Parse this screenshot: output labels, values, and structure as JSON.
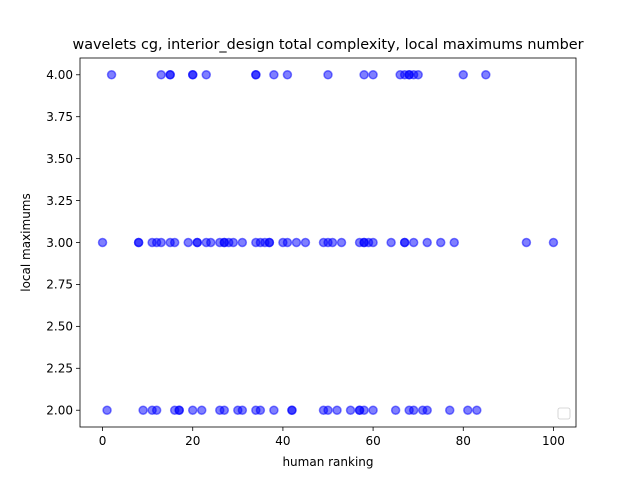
{
  "chart_data": {
    "type": "scatter",
    "title": "wavelets cg, interior_design total complexity, local maximums number",
    "xlabel": "human ranking",
    "ylabel": "local maximums",
    "xlim": [
      -5,
      105
    ],
    "ylim": [
      1.9,
      4.1
    ],
    "x_ticks": [
      0,
      20,
      40,
      60,
      80,
      100
    ],
    "x_tick_labels": [
      "0",
      "20",
      "40",
      "60",
      "80",
      "100"
    ],
    "y_ticks": [
      2.0,
      2.25,
      2.5,
      2.75,
      3.0,
      3.25,
      3.5,
      3.75,
      4.0
    ],
    "y_tick_labels": [
      "2.00",
      "2.25",
      "2.50",
      "2.75",
      "3.00",
      "3.25",
      "3.50",
      "3.75",
      "4.00"
    ],
    "grid": false,
    "legend_position": "lower right",
    "marker_color": "#0000ff",
    "series": [
      {
        "points": [
          [
            2,
            4
          ],
          [
            13,
            4
          ],
          [
            15,
            4
          ],
          [
            15,
            4
          ],
          [
            20,
            4
          ],
          [
            20,
            4
          ],
          [
            23,
            4
          ],
          [
            34,
            4
          ],
          [
            34,
            4
          ],
          [
            38,
            4
          ],
          [
            41,
            4
          ],
          [
            50,
            4
          ],
          [
            58,
            4
          ],
          [
            60,
            4
          ],
          [
            66,
            4
          ],
          [
            67,
            4
          ],
          [
            68,
            4
          ],
          [
            68,
            4
          ],
          [
            69,
            4
          ],
          [
            70,
            4
          ],
          [
            80,
            4
          ],
          [
            85,
            4
          ],
          [
            0,
            3
          ],
          [
            8,
            3
          ],
          [
            8,
            3
          ],
          [
            11,
            3
          ],
          [
            12,
            3
          ],
          [
            13,
            3
          ],
          [
            15,
            3
          ],
          [
            16,
            3
          ],
          [
            19,
            3
          ],
          [
            21,
            3
          ],
          [
            21,
            3
          ],
          [
            23,
            3
          ],
          [
            24,
            3
          ],
          [
            26,
            3
          ],
          [
            27,
            3
          ],
          [
            27,
            3
          ],
          [
            28,
            3
          ],
          [
            29,
            3
          ],
          [
            31,
            3
          ],
          [
            34,
            3
          ],
          [
            35,
            3
          ],
          [
            36,
            3
          ],
          [
            37,
            3
          ],
          [
            37,
            3
          ],
          [
            40,
            3
          ],
          [
            41,
            3
          ],
          [
            43,
            3
          ],
          [
            45,
            3
          ],
          [
            49,
            3
          ],
          [
            50,
            3
          ],
          [
            51,
            3
          ],
          [
            53,
            3
          ],
          [
            57,
            3
          ],
          [
            58,
            3
          ],
          [
            58,
            3
          ],
          [
            59,
            3
          ],
          [
            60,
            3
          ],
          [
            64,
            3
          ],
          [
            67,
            3
          ],
          [
            67,
            3
          ],
          [
            69,
            3
          ],
          [
            72,
            3
          ],
          [
            75,
            3
          ],
          [
            78,
            3
          ],
          [
            94,
            3
          ],
          [
            100,
            3
          ],
          [
            1,
            2
          ],
          [
            9,
            2
          ],
          [
            11,
            2
          ],
          [
            12,
            2
          ],
          [
            16,
            2
          ],
          [
            17,
            2
          ],
          [
            17,
            2
          ],
          [
            20,
            2
          ],
          [
            22,
            2
          ],
          [
            26,
            2
          ],
          [
            27,
            2
          ],
          [
            30,
            2
          ],
          [
            31,
            2
          ],
          [
            34,
            2
          ],
          [
            35,
            2
          ],
          [
            38,
            2
          ],
          [
            42,
            2
          ],
          [
            42,
            2
          ],
          [
            49,
            2
          ],
          [
            50,
            2
          ],
          [
            52,
            2
          ],
          [
            55,
            2
          ],
          [
            57,
            2
          ],
          [
            57,
            2
          ],
          [
            58,
            2
          ],
          [
            60,
            2
          ],
          [
            65,
            2
          ],
          [
            68,
            2
          ],
          [
            69,
            2
          ],
          [
            71,
            2
          ],
          [
            72,
            2
          ],
          [
            77,
            2
          ],
          [
            81,
            2
          ],
          [
            83,
            2
          ]
        ]
      }
    ]
  }
}
